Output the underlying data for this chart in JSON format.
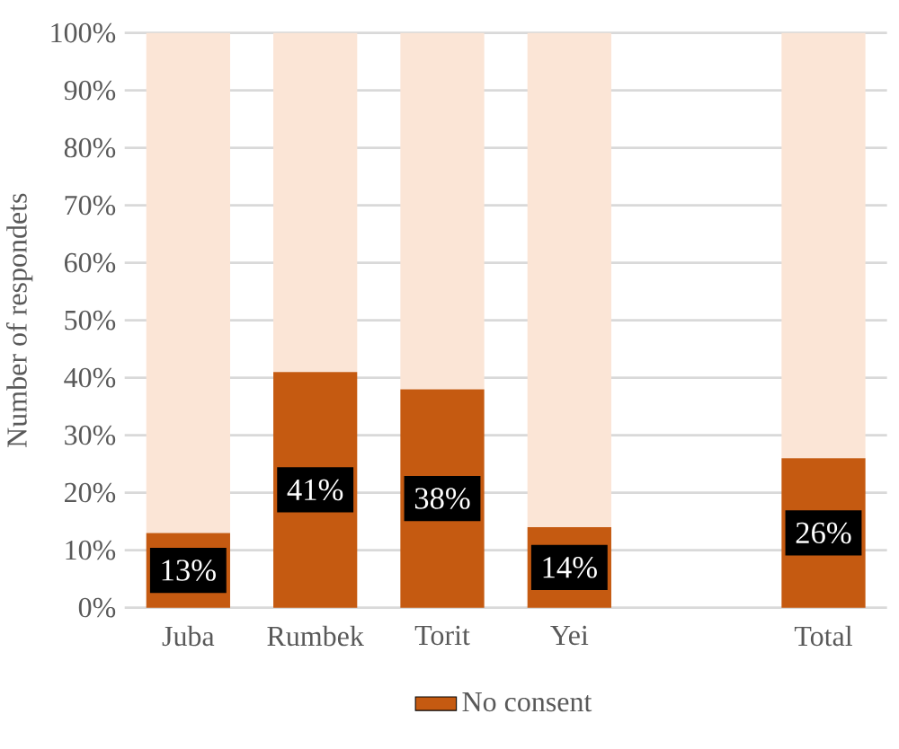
{
  "chart_data": {
    "type": "bar",
    "stacked": true,
    "ylabel": "Number of respondets",
    "categories": [
      "Juba",
      "Rumbek",
      "Torit",
      "Yei",
      null,
      "Total"
    ],
    "series": [
      {
        "name": "No consent",
        "color": "#c55a11",
        "values": [
          13,
          41,
          38,
          14,
          null,
          26
        ],
        "value_labels": [
          "13%",
          "41%",
          "38%",
          "14%",
          null,
          "26%"
        ]
      },
      {
        "color": "#fbe5d6",
        "values": [
          87,
          59,
          62,
          86,
          null,
          74
        ]
      }
    ],
    "ylim": [
      0,
      100
    ],
    "yticks": [
      {
        "value": 0,
        "label": "0%"
      },
      {
        "value": 10,
        "label": "10%"
      },
      {
        "value": 20,
        "label": "20%"
      },
      {
        "value": 30,
        "label": "30%"
      },
      {
        "value": 40,
        "label": "40%"
      },
      {
        "value": 50,
        "label": "50%"
      },
      {
        "value": 60,
        "label": "60%"
      },
      {
        "value": 70,
        "label": "70%"
      },
      {
        "value": 80,
        "label": "80%"
      },
      {
        "value": 90,
        "label": "90%"
      },
      {
        "value": 100,
        "label": "100%"
      }
    ],
    "grid": "y",
    "legend": "bottom"
  }
}
